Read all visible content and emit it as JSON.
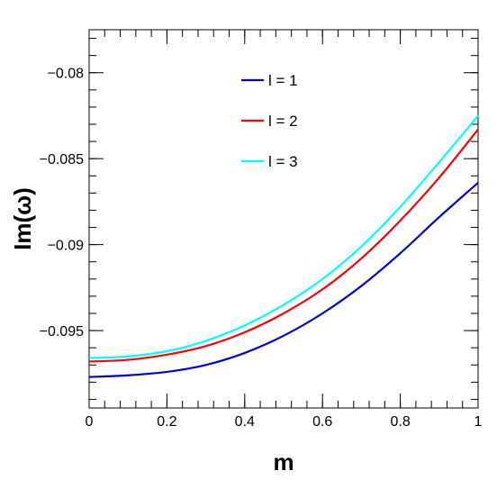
{
  "chart_data": {
    "type": "line",
    "title": "",
    "xlabel": "m",
    "ylabel": "Im(ω)",
    "xlim": [
      0,
      1
    ],
    "ylim": [
      -0.0995,
      -0.0775
    ],
    "grid": false,
    "legend_position": "top-center",
    "x_ticks": [
      0,
      0.2,
      0.4,
      0.6,
      0.8,
      1
    ],
    "x_tick_labels": [
      "0",
      "0.2",
      "0.4",
      "0.6",
      "0.8",
      "1"
    ],
    "y_ticks": [
      -0.095,
      -0.09,
      -0.085,
      -0.08
    ],
    "y_tick_labels": [
      "−0.095",
      "−0.09",
      "−0.085",
      "−0.08"
    ],
    "x": [
      0,
      0.1,
      0.2,
      0.3,
      0.4,
      0.5,
      0.6,
      0.7,
      0.8,
      0.9,
      1.0
    ],
    "series": [
      {
        "name": "l = 1",
        "color": "#0000cc",
        "values": [
          -0.0977,
          -0.0976,
          -0.0974,
          -0.097,
          -0.0963,
          -0.0953,
          -0.094,
          -0.0924,
          -0.0905,
          -0.0884,
          -0.0864
        ]
      },
      {
        "name": "l = 2",
        "color": "#ff0000",
        "values": [
          -0.0968,
          -0.0967,
          -0.0964,
          -0.0959,
          -0.0951,
          -0.094,
          -0.0926,
          -0.0908,
          -0.0886,
          -0.0861,
          -0.0833
        ]
      },
      {
        "name": "l = 3",
        "color": "#00ffff",
        "values": [
          -0.0966,
          -0.0965,
          -0.0962,
          -0.0956,
          -0.0947,
          -0.0935,
          -0.092,
          -0.0901,
          -0.0878,
          -0.0852,
          -0.0825
        ]
      }
    ]
  }
}
